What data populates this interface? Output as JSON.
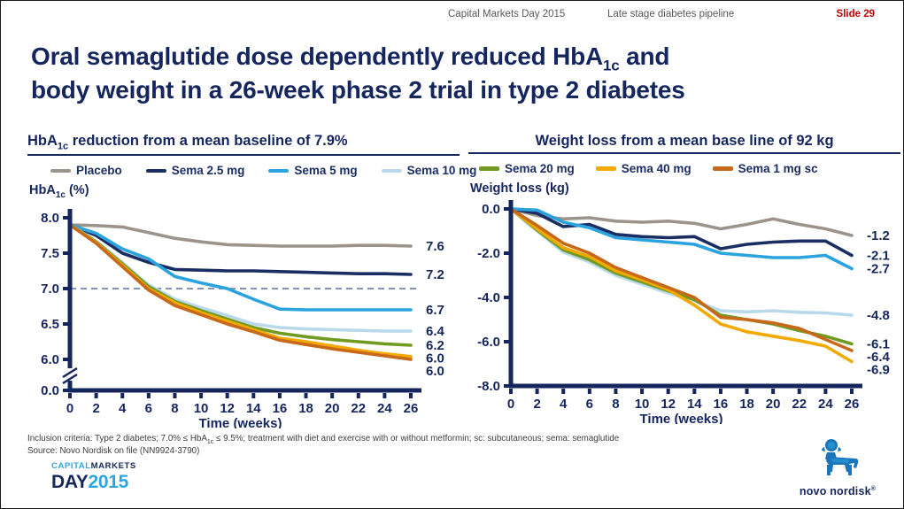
{
  "header": {
    "event": "Capital Markets Day 2015",
    "section": "Late stage diabetes pipeline",
    "slide": "Slide 29"
  },
  "title": {
    "l1a": "Oral semaglutide dose dependently reduced HbA",
    "l1sub": "1c",
    "l1b": " and",
    "l2": "body weight in a 26-week phase 2 trial in type 2 diabetes"
  },
  "footnote": {
    "l1a": "Inclusion criteria: Type 2 diabetes; 7.0% ≤ HbA",
    "l1sub": "1c",
    "l1b": " ≤ 9.5%; treatment with diet and exercise with or without metformin; sc: subcutaneous; sema: semaglutide",
    "l2": "Source: Novo Nordisk on file (NN9924-3790)"
  },
  "cmd_logo": {
    "l1a": "CAPITAL",
    "l1b": "MARKETS",
    "l2a": "DAY",
    "l2b": "2015"
  },
  "novo_logo": {
    "wordmark": "novo nordisk",
    "reg": "®"
  },
  "colors": {
    "navy": "#15265e",
    "slide_red": "#c00000",
    "header_gray": "#595959",
    "dashed_target": "#8393bd",
    "logo_light_blue": "#2ba6df",
    "bull_blue": "#1c75bb"
  },
  "chart_data": [
    {
      "type": "line",
      "title": "HbA1c reduction from a mean baseline of 7.9%",
      "title_parts": {
        "a": "HbA",
        "sub": "1c",
        "b": " reduction from a mean baseline of 7.9%"
      },
      "ylabel": "HbA1c (%)",
      "ylabel_parts": {
        "a": "HbA",
        "sub": "1c",
        "b": " (%)"
      },
      "xlabel": "Time (weeks)",
      "x": [
        0,
        2,
        4,
        6,
        8,
        10,
        12,
        14,
        16,
        18,
        20,
        22,
        24,
        26
      ],
      "ylim": [
        6.0,
        8.0
      ],
      "axis_break": true,
      "grid": false,
      "reference_line": 7.0,
      "yticks": [
        {
          "v": 8.0,
          "label": "8.0"
        },
        {
          "v": 7.5,
          "label": "7.5"
        },
        {
          "v": 7.0,
          "label": "7.0"
        },
        {
          "v": 6.5,
          "label": "6.5"
        },
        {
          "v": 6.0,
          "label": "6.0"
        },
        {
          "br": true,
          "label": "0.0"
        }
      ],
      "series": [
        {
          "name": "Placebo",
          "color": "#9c948b",
          "end_label": "7.6",
          "values": [
            7.9,
            7.89,
            7.87,
            7.79,
            7.71,
            7.66,
            7.62,
            7.61,
            7.6,
            7.6,
            7.6,
            7.61,
            7.61,
            7.6
          ]
        },
        {
          "name": "Sema 2.5 mg",
          "color": "#1b2e63",
          "end_label": "7.2",
          "values": [
            7.9,
            7.75,
            7.5,
            7.37,
            7.27,
            7.26,
            7.25,
            7.25,
            7.24,
            7.23,
            7.22,
            7.21,
            7.21,
            7.2
          ]
        },
        {
          "name": "Sema 5 mg",
          "color": "#2aa3de",
          "end_label": "6.7",
          "values": [
            7.9,
            7.78,
            7.56,
            7.42,
            7.17,
            7.08,
            7.0,
            6.85,
            6.71,
            6.7,
            6.7,
            6.7,
            6.7,
            6.7
          ]
        },
        {
          "name": "Sema 10 mg",
          "color": "#b9d9ea",
          "end_label": "6.4",
          "values": [
            7.9,
            7.67,
            7.37,
            7.05,
            6.85,
            6.73,
            6.62,
            6.5,
            6.45,
            6.43,
            6.42,
            6.41,
            6.4,
            6.4
          ]
        },
        {
          "name": "Sema 20 mg",
          "color": "#719a23",
          "end_label": "6.2",
          "values": [
            7.9,
            7.66,
            7.35,
            7.03,
            6.82,
            6.69,
            6.57,
            6.45,
            6.37,
            6.32,
            6.28,
            6.25,
            6.22,
            6.2
          ]
        },
        {
          "name": "Sema 40 mg",
          "color": "#f2a900",
          "end_label": "6.0",
          "values": [
            7.9,
            7.65,
            7.33,
            7.0,
            6.8,
            6.66,
            6.54,
            6.42,
            6.3,
            6.25,
            6.19,
            6.13,
            6.08,
            6.04
          ]
        },
        {
          "name": "Sema 1 mg sc",
          "color": "#c8681a",
          "end_label": "6.0",
          "values": [
            7.9,
            7.64,
            7.31,
            6.98,
            6.76,
            6.63,
            6.5,
            6.39,
            6.27,
            6.21,
            6.15,
            6.1,
            6.05,
            6.0
          ]
        }
      ]
    },
    {
      "type": "line",
      "title": "Weight loss from a mean base line of 92 kg",
      "ylabel": "Weight loss (kg)",
      "xlabel": "Time (weeks)",
      "x": [
        0,
        2,
        4,
        6,
        8,
        10,
        12,
        14,
        16,
        18,
        20,
        22,
        24,
        26
      ],
      "ylim": [
        -8.0,
        0.0
      ],
      "axis_break": false,
      "grid": false,
      "yticks": [
        {
          "v": 0.0,
          "label": "0.0"
        },
        {
          "v": -2.0,
          "label": "-2.0"
        },
        {
          "v": -4.0,
          "label": "-4.0"
        },
        {
          "v": -6.0,
          "label": "-6.0"
        },
        {
          "v": -8.0,
          "label": "-8.0"
        }
      ],
      "series": [
        {
          "name": "Placebo",
          "color": "#9c948b",
          "end_label": "-1.2",
          "values": [
            0,
            -0.3,
            -0.45,
            -0.4,
            -0.55,
            -0.6,
            -0.55,
            -0.65,
            -0.9,
            -0.7,
            -0.45,
            -0.7,
            -0.9,
            -1.2
          ]
        },
        {
          "name": "Sema 2.5 mg",
          "color": "#1b2e63",
          "end_label": "-2.1",
          "values": [
            0,
            -0.2,
            -0.8,
            -0.7,
            -1.15,
            -1.25,
            -1.3,
            -1.25,
            -1.8,
            -1.6,
            -1.5,
            -1.45,
            -1.45,
            -2.1
          ]
        },
        {
          "name": "Sema 5 mg",
          "color": "#2aa3de",
          "end_label": "-2.7",
          "values": [
            0,
            -0.05,
            -0.6,
            -0.85,
            -1.3,
            -1.4,
            -1.5,
            -1.6,
            -2.0,
            -2.1,
            -2.2,
            -2.2,
            -2.1,
            -2.7
          ]
        },
        {
          "name": "Sema 10 mg",
          "color": "#b9d9ea",
          "end_label": "-4.8",
          "values": [
            0,
            -1.0,
            -1.95,
            -2.4,
            -3.0,
            -3.4,
            -3.8,
            -4.15,
            -4.6,
            -4.65,
            -4.6,
            -4.67,
            -4.7,
            -4.8
          ]
        },
        {
          "name": "Sema 20 mg",
          "color": "#719a23",
          "end_label": "-6.1",
          "values": [
            0,
            -0.95,
            -1.85,
            -2.3,
            -2.9,
            -3.3,
            -3.7,
            -4.1,
            -4.8,
            -5.0,
            -5.2,
            -5.5,
            -5.75,
            -6.1
          ]
        },
        {
          "name": "Sema 40 mg",
          "color": "#f2a900",
          "end_label": "-6.9",
          "values": [
            0,
            -0.9,
            -1.75,
            -2.15,
            -2.8,
            -3.2,
            -3.65,
            -4.35,
            -5.2,
            -5.55,
            -5.75,
            -5.95,
            -6.2,
            -6.9
          ]
        },
        {
          "name": "Sema 1 mg sc",
          "color": "#c8681a",
          "end_label": "-6.4",
          "values": [
            0,
            -0.75,
            -1.55,
            -2.0,
            -2.65,
            -3.1,
            -3.55,
            -4.0,
            -4.9,
            -5.0,
            -5.15,
            -5.4,
            -5.9,
            -6.4
          ]
        }
      ]
    }
  ]
}
